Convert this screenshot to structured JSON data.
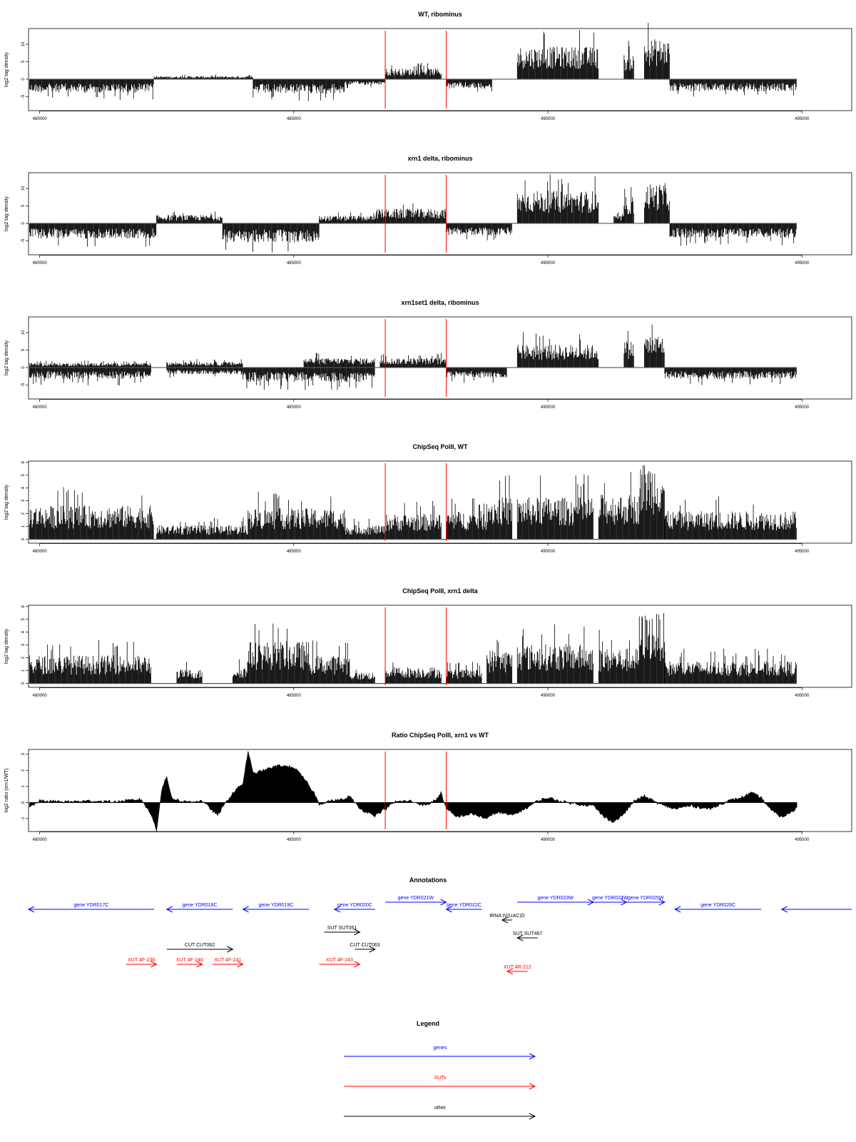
{
  "chart_data": [
    {
      "type": "bar",
      "title": "WT, ribominus",
      "ylabel": "log2 tag density",
      "ylim": [
        -9,
        14.5
      ],
      "yticks": [
        "-5",
        "0",
        "5",
        "10"
      ],
      "xlim": [
        479780,
        495980
      ],
      "xticks": [
        "480000",
        "485000",
        "490000",
        "495000"
      ],
      "marker_lines_x": [
        486800,
        488000
      ],
      "marker_color": "#ff0000",
      "segments": [
        {
          "x": [
            479800,
            482250
          ],
          "level": -3.5,
          "sign": -1
        },
        {
          "x": [
            482250,
            484200
          ],
          "level": 0.8,
          "sign": 1
        },
        {
          "x": [
            484200,
            486000
          ],
          "level": -3.8,
          "sign": -1
        },
        {
          "x": [
            486000,
            486800
          ],
          "level": -1.5,
          "sign": -1
        },
        {
          "x": [
            486800,
            487900
          ],
          "level": 2.8,
          "sign": 1
        },
        {
          "x": [
            488000,
            488900
          ],
          "level": -2.5,
          "sign": -1
        },
        {
          "x": [
            489400,
            491000
          ],
          "level": 8.5,
          "sign": 1
        },
        {
          "x": [
            491500,
            491700
          ],
          "level": 6.5,
          "sign": 1
        },
        {
          "x": [
            491900,
            492400
          ],
          "level": 10.5,
          "sign": 1
        },
        {
          "x": [
            492400,
            494900
          ],
          "level": -3.2,
          "sign": -1
        }
      ]
    },
    {
      "type": "bar",
      "title": "xrn1 delta, ribominus",
      "ylabel": "log2 tag density",
      "ylim": [
        -9,
        14.5
      ],
      "yticks": [
        "-5",
        "0",
        "5",
        "10"
      ],
      "xlim": [
        479780,
        495980
      ],
      "xticks": [
        "480000",
        "485000",
        "490000",
        "495000"
      ],
      "marker_lines_x": [
        486800,
        488000
      ],
      "marker_color": "#ff0000",
      "segments": [
        {
          "x": [
            479800,
            482300
          ],
          "level": -4.0,
          "sign": -1
        },
        {
          "x": [
            482300,
            483600
          ],
          "level": 2.2,
          "sign": 1
        },
        {
          "x": [
            483600,
            485500
          ],
          "level": -5.0,
          "sign": -1
        },
        {
          "x": [
            485500,
            486600
          ],
          "level": 2.0,
          "sign": 1
        },
        {
          "x": [
            486600,
            488000
          ],
          "level": 3.8,
          "sign": 1
        },
        {
          "x": [
            488000,
            489300
          ],
          "level": -3.2,
          "sign": -1
        },
        {
          "x": [
            489400,
            491000
          ],
          "level": 8.5,
          "sign": 1
        },
        {
          "x": [
            491300,
            491500
          ],
          "level": 2.0,
          "sign": 1
        },
        {
          "x": [
            491500,
            491700
          ],
          "level": 7.0,
          "sign": 1
        },
        {
          "x": [
            491900,
            492400
          ],
          "level": 10.5,
          "sign": 1
        },
        {
          "x": [
            492400,
            494900
          ],
          "level": -3.8,
          "sign": -1
        }
      ]
    },
    {
      "type": "bar",
      "title": "xrn1set1 delta, ribominus",
      "ylabel": "log2 tag density",
      "ylim": [
        -9,
        14.5
      ],
      "yticks": [
        "-5",
        "0",
        "5",
        "10"
      ],
      "xlim": [
        479780,
        495980
      ],
      "xticks": [
        "480000",
        "485000",
        "490000",
        "495000"
      ],
      "marker_lines_x": [
        486800,
        488000
      ],
      "marker_color": "#ff0000",
      "segments": [
        {
          "x": [
            479800,
            482200
          ],
          "level": -3.0,
          "sign": -1
        },
        {
          "x": [
            479800,
            482200
          ],
          "level": 1.2,
          "sign": 1
        },
        {
          "x": [
            482500,
            484000
          ],
          "level": 1.5,
          "sign": 1
        },
        {
          "x": [
            482500,
            484000
          ],
          "level": -1.8,
          "sign": -1
        },
        {
          "x": [
            484000,
            486600
          ],
          "level": -3.8,
          "sign": -1
        },
        {
          "x": [
            485200,
            486600
          ],
          "level": 2.5,
          "sign": 1
        },
        {
          "x": [
            486700,
            488000
          ],
          "level": 2.5,
          "sign": 1
        },
        {
          "x": [
            488000,
            489200
          ],
          "level": -2.8,
          "sign": -1
        },
        {
          "x": [
            489400,
            491000
          ],
          "level": 6.0,
          "sign": 1
        },
        {
          "x": [
            491500,
            491700
          ],
          "level": 7.0,
          "sign": 1
        },
        {
          "x": [
            491900,
            492300
          ],
          "level": 8.5,
          "sign": 1
        },
        {
          "x": [
            492300,
            494900
          ],
          "level": -3.0,
          "sign": -1
        }
      ]
    },
    {
      "type": "bar",
      "title": "ChipSeq PolII, WT",
      "ylabel": "log2 tag density",
      "ylim": [
        -0.3,
        6.1
      ],
      "yticks": [
        "0",
        "1",
        "2",
        "3",
        "4",
        "5",
        "6"
      ],
      "xlim": [
        479780,
        495980
      ],
      "xticks": [
        "480000",
        "485000",
        "490000",
        "495000"
      ],
      "marker_lines_x": [
        486800,
        488000
      ],
      "marker_color": "#ff0000",
      "segments": [
        {
          "x": [
            479800,
            482250
          ],
          "level": 2.4,
          "sign": 1
        },
        {
          "x": [
            482300,
            484100
          ],
          "level": 1.0,
          "sign": 1
        },
        {
          "x": [
            484100,
            486000
          ],
          "level": 2.2,
          "sign": 1
        },
        {
          "x": [
            486000,
            486800
          ],
          "level": 1.0,
          "sign": 1
        },
        {
          "x": [
            486800,
            487900
          ],
          "level": 1.8,
          "sign": 1
        },
        {
          "x": [
            488000,
            488800
          ],
          "level": 2.0,
          "sign": 1
        },
        {
          "x": [
            488800,
            489300
          ],
          "level": 3.0,
          "sign": 1
        },
        {
          "x": [
            489400,
            490900
          ],
          "level": 3.0,
          "sign": 1
        },
        {
          "x": [
            491000,
            491800
          ],
          "level": 3.2,
          "sign": 1
        },
        {
          "x": [
            491800,
            492300
          ],
          "level": 5.5,
          "sign": 1
        },
        {
          "x": [
            492300,
            494900
          ],
          "level": 2.0,
          "sign": 1
        }
      ]
    },
    {
      "type": "bar",
      "title": "ChipSeq PolII, xrn1 delta",
      "ylabel": "log2 tag density",
      "ylim": [
        -0.3,
        6.1
      ],
      "yticks": [
        "0",
        "1",
        "2",
        "3",
        "4",
        "5",
        "6"
      ],
      "xlim": [
        479780,
        495980
      ],
      "xticks": [
        "480000",
        "485000",
        "490000",
        "495000"
      ],
      "marker_lines_x": [
        486800,
        488000
      ],
      "marker_color": "#ff0000",
      "segments": [
        {
          "x": [
            479800,
            482200
          ],
          "level": 2.0,
          "sign": 1
        },
        {
          "x": [
            482700,
            483200
          ],
          "level": 1.0,
          "sign": 1
        },
        {
          "x": [
            483800,
            484100
          ],
          "level": 1.2,
          "sign": 1
        },
        {
          "x": [
            484100,
            485300
          ],
          "level": 3.0,
          "sign": 1
        },
        {
          "x": [
            485300,
            486100
          ],
          "level": 2.0,
          "sign": 1
        },
        {
          "x": [
            486100,
            486600
          ],
          "level": 0.8,
          "sign": 1
        },
        {
          "x": [
            486800,
            487900
          ],
          "level": 1.2,
          "sign": 1
        },
        {
          "x": [
            488000,
            488700
          ],
          "level": 1.0,
          "sign": 1
        },
        {
          "x": [
            488800,
            489300
          ],
          "level": 2.4,
          "sign": 1
        },
        {
          "x": [
            489400,
            490900
          ],
          "level": 2.8,
          "sign": 1
        },
        {
          "x": [
            491000,
            491800
          ],
          "level": 2.5,
          "sign": 1
        },
        {
          "x": [
            491800,
            492300
          ],
          "level": 5.0,
          "sign": 1
        },
        {
          "x": [
            492300,
            494900
          ],
          "level": 1.6,
          "sign": 1
        }
      ]
    },
    {
      "type": "area",
      "title": "Ratio ChipSeq PolII, xrn1 vs WT",
      "ylabel": "log2 ratio (xrn1/WT)",
      "ylim": [
        -1.8,
        3.3
      ],
      "yticks": [
        "-1",
        "0",
        "1",
        "2",
        "3"
      ],
      "xlim": [
        479780,
        495980
      ],
      "xticks": [
        "480000",
        "485000",
        "490000",
        "495000"
      ],
      "marker_lines_x": [
        486800,
        488000
      ],
      "marker_color": "#ff0000",
      "points": [
        [
          479800,
          -0.3
        ],
        [
          480000,
          0.1
        ],
        [
          480500,
          0.05
        ],
        [
          481000,
          0.1
        ],
        [
          481500,
          0.05
        ],
        [
          482000,
          0.2
        ],
        [
          482200,
          -0.8
        ],
        [
          482300,
          -1.7
        ],
        [
          482400,
          0.8
        ],
        [
          482500,
          1.6
        ],
        [
          482600,
          0.3
        ],
        [
          482800,
          0.05
        ],
        [
          483200,
          0.1
        ],
        [
          483500,
          -0.8
        ],
        [
          483600,
          -0.3
        ],
        [
          483800,
          0.6
        ],
        [
          484000,
          1.2
        ],
        [
          484100,
          3.2
        ],
        [
          484200,
          1.8
        ],
        [
          484400,
          2.0
        ],
        [
          484700,
          2.3
        ],
        [
          485000,
          2.2
        ],
        [
          485200,
          1.5
        ],
        [
          485400,
          0.6
        ],
        [
          485500,
          -0.1
        ],
        [
          485700,
          0.1
        ],
        [
          486000,
          0.2
        ],
        [
          486100,
          0.4
        ],
        [
          486300,
          -0.4
        ],
        [
          486600,
          -0.8
        ],
        [
          486800,
          -0.4
        ],
        [
          487000,
          0.05
        ],
        [
          487300,
          0.1
        ],
        [
          487600,
          -0.2
        ],
        [
          487800,
          0.2
        ],
        [
          487900,
          0.6
        ],
        [
          488000,
          -0.4
        ],
        [
          488200,
          -0.9
        ],
        [
          488500,
          -0.7
        ],
        [
          488800,
          -1.0
        ],
        [
          489000,
          -0.6
        ],
        [
          489300,
          -0.8
        ],
        [
          489600,
          -0.3
        ],
        [
          489800,
          0.1
        ],
        [
          490000,
          0.3
        ],
        [
          490300,
          0.05
        ],
        [
          490600,
          -0.1
        ],
        [
          490900,
          -0.2
        ],
        [
          491100,
          -0.9
        ],
        [
          491300,
          -1.2
        ],
        [
          491500,
          -0.7
        ],
        [
          491700,
          0.1
        ],
        [
          491900,
          0.4
        ],
        [
          492200,
          -0.1
        ],
        [
          492500,
          -0.4
        ],
        [
          492800,
          -0.2
        ],
        [
          493200,
          -0.4
        ],
        [
          493500,
          0.05
        ],
        [
          493800,
          0.3
        ],
        [
          494000,
          0.6
        ],
        [
          494200,
          0.3
        ],
        [
          494400,
          -0.5
        ],
        [
          494600,
          -0.9
        ],
        [
          494800,
          -0.6
        ],
        [
          494900,
          -0.3
        ]
      ]
    }
  ],
  "annotations": {
    "title": "Annotations",
    "xlim": [
      479780,
      495980
    ],
    "items": [
      {
        "label": "gene YDR017C",
        "color": "#0000ff",
        "x": [
          479780,
          482250
        ],
        "dir": "left",
        "row": 1
      },
      {
        "label": "gene YDR018C",
        "color": "#0000ff",
        "x": [
          482500,
          483800
        ],
        "dir": "left",
        "row": 1
      },
      {
        "label": "gene YDR019C",
        "color": "#0000ff",
        "x": [
          484000,
          485300
        ],
        "dir": "left",
        "row": 1
      },
      {
        "label": "gene YDR020C",
        "color": "#0000ff",
        "x": [
          485800,
          486600
        ],
        "dir": "left",
        "row": 1
      },
      {
        "label": "gene YDR021W",
        "color": "#0000ff",
        "x": [
          486800,
          488000
        ],
        "dir": "right",
        "row": 0
      },
      {
        "label": "gene YDR022C",
        "color": "#0000ff",
        "x": [
          488000,
          488700
        ],
        "dir": "left",
        "row": 1
      },
      {
        "label": "gene YDR023W",
        "color": "#0000ff",
        "x": [
          489400,
          490900
        ],
        "dir": "right",
        "row": 0
      },
      {
        "label": "gene YDR024W",
        "color": "#0000ff",
        "x": [
          490900,
          491550
        ],
        "dir": "right",
        "row": 0
      },
      {
        "label": "gene YDR025W",
        "color": "#0000ff",
        "x": [
          491550,
          492300
        ],
        "dir": "right",
        "row": 0
      },
      {
        "label": "gene YDR026C",
        "color": "#0000ff",
        "x": [
          492500,
          494200
        ],
        "dir": "left",
        "row": 1
      },
      {
        "label": "",
        "color": "#0000ff",
        "x": [
          494600,
          495980
        ],
        "dir": "left",
        "row": 1
      },
      {
        "label": "tRNA tV(UAC)D",
        "color": "#000000",
        "x": [
          489100,
          489300
        ],
        "dir": "left",
        "row": 2
      },
      {
        "label": "SUT SUT051",
        "color": "#000000",
        "x": [
          485600,
          486300
        ],
        "dir": "right",
        "row": 3
      },
      {
        "label": "SUT SUT467",
        "color": "#000000",
        "x": [
          489400,
          489800
        ],
        "dir": "left",
        "row": 4
      },
      {
        "label": "CUT CUT062",
        "color": "#000000",
        "x": [
          482500,
          483800
        ],
        "dir": "right",
        "row": 5
      },
      {
        "label": "CUT CUT063",
        "color": "#000000",
        "x": [
          486200,
          486600
        ],
        "dir": "right",
        "row": 5
      },
      {
        "label": "XUT 4F-238",
        "color": "#ff0000",
        "x": [
          481700,
          482300
        ],
        "dir": "right",
        "row": 6
      },
      {
        "label": "XUT 4F-240",
        "color": "#ff0000",
        "x": [
          482700,
          483200
        ],
        "dir": "right",
        "row": 6
      },
      {
        "label": "XUT 4F-241",
        "color": "#ff0000",
        "x": [
          483400,
          484000
        ],
        "dir": "right",
        "row": 6
      },
      {
        "label": "XUT 4F-243",
        "color": "#ff0000",
        "x": [
          485500,
          486300
        ],
        "dir": "right",
        "row": 6
      },
      {
        "label": "XUT 4R-212",
        "color": "#ff0000",
        "x": [
          489200,
          489600
        ],
        "dir": "left",
        "row": 7
      }
    ]
  },
  "legend": {
    "title": "Legend",
    "entries": [
      {
        "label": "genes",
        "color": "#0000ff"
      },
      {
        "label": "XUTs",
        "color": "#ff0000"
      },
      {
        "label": "other",
        "color": "#000000"
      }
    ]
  }
}
